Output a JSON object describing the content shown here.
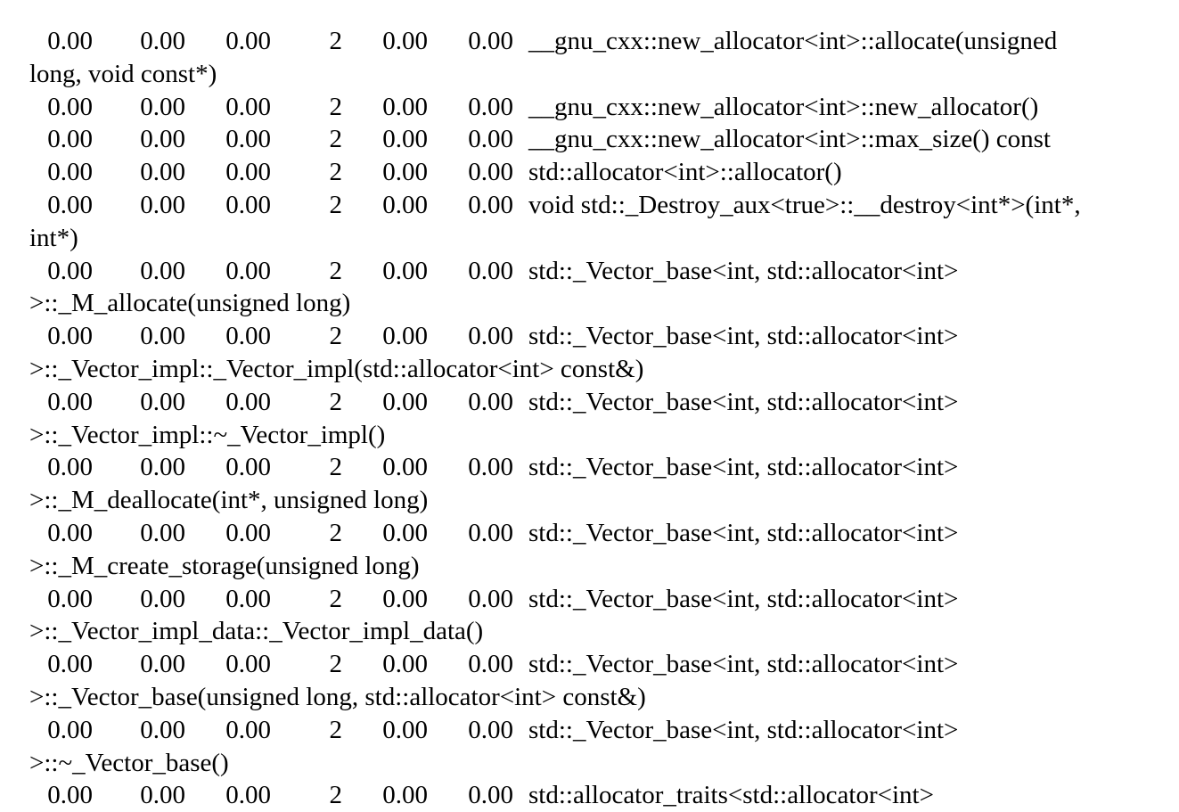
{
  "entries": [
    {
      "self_pct": "0.00",
      "cumulative": "0.00",
      "self_seconds": "0.00",
      "calls": "2",
      "self_per_call": "0.00",
      "total_per_call": "0.00",
      "name_line1": "__gnu_cxx::new_allocator<int>::allocate(unsigned",
      "name_line2": "long, void const*)"
    },
    {
      "self_pct": "0.00",
      "cumulative": "0.00",
      "self_seconds": "0.00",
      "calls": "2",
      "self_per_call": "0.00",
      "total_per_call": "0.00",
      "name_line1": "__gnu_cxx::new_allocator<int>::new_allocator()",
      "name_line2": ""
    },
    {
      "self_pct": "0.00",
      "cumulative": "0.00",
      "self_seconds": "0.00",
      "calls": "2",
      "self_per_call": "0.00",
      "total_per_call": "0.00",
      "name_line1": "__gnu_cxx::new_allocator<int>::max_size() const",
      "name_line2": ""
    },
    {
      "self_pct": "0.00",
      "cumulative": "0.00",
      "self_seconds": "0.00",
      "calls": "2",
      "self_per_call": "0.00",
      "total_per_call": "0.00",
      "name_line1": "std::allocator<int>::allocator()",
      "name_line2": ""
    },
    {
      "self_pct": "0.00",
      "cumulative": "0.00",
      "self_seconds": "0.00",
      "calls": "2",
      "self_per_call": "0.00",
      "total_per_call": "0.00",
      "name_line1": "void std::_Destroy_aux<true>::__destroy<int*>(int*,",
      "name_line2": "int*)"
    },
    {
      "self_pct": "0.00",
      "cumulative": "0.00",
      "self_seconds": "0.00",
      "calls": "2",
      "self_per_call": "0.00",
      "total_per_call": "0.00",
      "name_line1": "std::_Vector_base<int, std::allocator<int>",
      "name_line2": ">::_M_allocate(unsigned long)"
    },
    {
      "self_pct": "0.00",
      "cumulative": "0.00",
      "self_seconds": "0.00",
      "calls": "2",
      "self_per_call": "0.00",
      "total_per_call": "0.00",
      "name_line1": "std::_Vector_base<int, std::allocator<int>",
      "name_line2": ">::_Vector_impl::_Vector_impl(std::allocator<int> const&)"
    },
    {
      "self_pct": "0.00",
      "cumulative": "0.00",
      "self_seconds": "0.00",
      "calls": "2",
      "self_per_call": "0.00",
      "total_per_call": "0.00",
      "name_line1": "std::_Vector_base<int, std::allocator<int>",
      "name_line2": ">::_Vector_impl::~_Vector_impl()"
    },
    {
      "self_pct": "0.00",
      "cumulative": "0.00",
      "self_seconds": "0.00",
      "calls": "2",
      "self_per_call": "0.00",
      "total_per_call": "0.00",
      "name_line1": "std::_Vector_base<int, std::allocator<int>",
      "name_line2": ">::_M_deallocate(int*, unsigned long)"
    },
    {
      "self_pct": "0.00",
      "cumulative": "0.00",
      "self_seconds": "0.00",
      "calls": "2",
      "self_per_call": "0.00",
      "total_per_call": "0.00",
      "name_line1": "std::_Vector_base<int, std::allocator<int>",
      "name_line2": ">::_M_create_storage(unsigned long)"
    },
    {
      "self_pct": "0.00",
      "cumulative": "0.00",
      "self_seconds": "0.00",
      "calls": "2",
      "self_per_call": "0.00",
      "total_per_call": "0.00",
      "name_line1": "std::_Vector_base<int, std::allocator<int>",
      "name_line2": ">::_Vector_impl_data::_Vector_impl_data()"
    },
    {
      "self_pct": "0.00",
      "cumulative": "0.00",
      "self_seconds": "0.00",
      "calls": "2",
      "self_per_call": "0.00",
      "total_per_call": "0.00",
      "name_line1": "std::_Vector_base<int, std::allocator<int>",
      "name_line2": ">::_Vector_base(unsigned long, std::allocator<int> const&)"
    },
    {
      "self_pct": "0.00",
      "cumulative": "0.00",
      "self_seconds": "0.00",
      "calls": "2",
      "self_per_call": "0.00",
      "total_per_call": "0.00",
      "name_line1": "std::_Vector_base<int, std::allocator<int>",
      "name_line2": ">::~_Vector_base()"
    },
    {
      "self_pct": "0.00",
      "cumulative": "0.00",
      "self_seconds": "0.00",
      "calls": "2",
      "self_per_call": "0.00",
      "total_per_call": "0.00",
      "name_line1": "std::allocator_traits<std::allocator<int>",
      "name_line2": ""
    }
  ]
}
